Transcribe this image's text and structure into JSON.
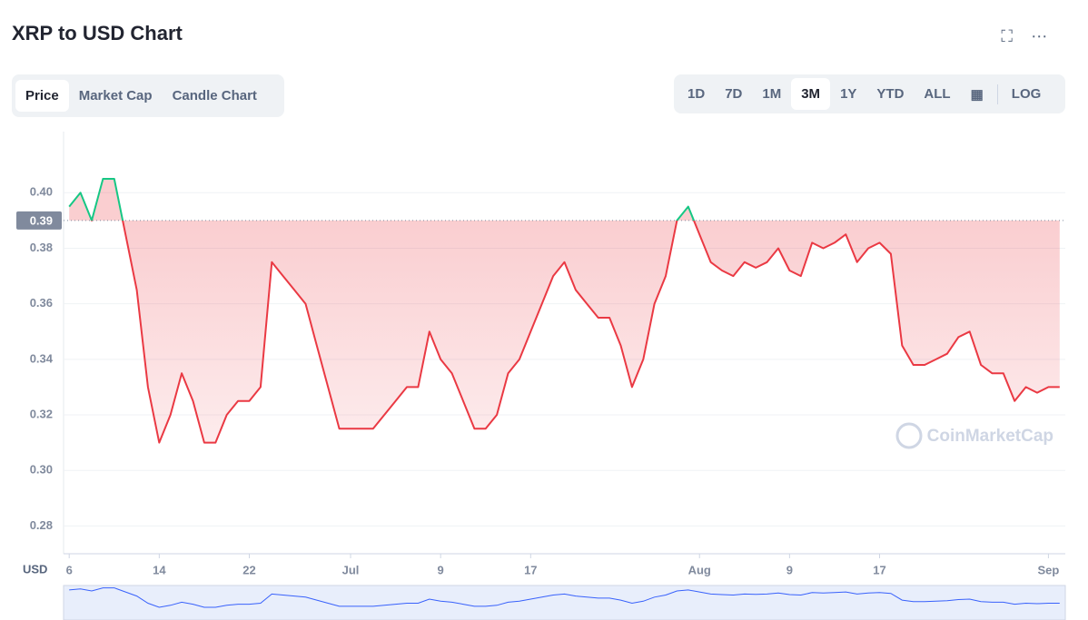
{
  "ui": {
    "tabs": [
      "Price",
      "Market Cap",
      "Candle Chart"
    ],
    "ranges": [
      "1D",
      "7D",
      "1M",
      "3M",
      "1Y",
      "YTD",
      "ALL"
    ],
    "log": "LOG",
    "watermark": "CoinMarketCap"
  },
  "chart_data": {
    "type": "line",
    "title": "XRP to USD Chart",
    "y_label": "USD",
    "x": [
      0,
      1,
      2,
      3,
      4,
      5,
      6,
      7,
      8,
      9,
      10,
      11,
      12,
      13,
      14,
      15,
      16,
      17,
      18,
      19,
      20,
      21,
      22,
      23,
      24,
      25,
      26,
      27,
      28,
      29,
      30,
      31,
      32,
      33,
      34,
      35,
      36,
      37,
      38,
      39,
      40,
      41,
      42,
      43,
      44,
      45,
      46,
      47,
      48,
      49,
      50,
      51,
      52,
      53,
      54,
      55,
      56,
      57,
      58,
      59,
      60,
      61,
      62,
      63,
      64,
      65,
      66,
      67,
      68,
      69,
      70,
      71,
      72,
      73,
      74,
      75,
      76,
      77,
      78,
      79,
      80,
      81,
      82,
      83,
      84,
      85,
      86,
      87,
      88
    ],
    "values": [
      0.395,
      0.4,
      0.39,
      0.405,
      0.405,
      0.385,
      0.365,
      0.33,
      0.31,
      0.32,
      0.335,
      0.325,
      0.31,
      0.31,
      0.32,
      0.325,
      0.325,
      0.33,
      0.375,
      0.37,
      0.365,
      0.36,
      0.345,
      0.33,
      0.315,
      0.315,
      0.315,
      0.315,
      0.32,
      0.325,
      0.33,
      0.33,
      0.35,
      0.34,
      0.335,
      0.325,
      0.315,
      0.315,
      0.32,
      0.335,
      0.34,
      0.35,
      0.36,
      0.37,
      0.375,
      0.365,
      0.36,
      0.355,
      0.355,
      0.345,
      0.33,
      0.34,
      0.36,
      0.37,
      0.39,
      0.395,
      0.385,
      0.375,
      0.372,
      0.37,
      0.375,
      0.373,
      0.375,
      0.38,
      0.372,
      0.37,
      0.382,
      0.38,
      0.382,
      0.385,
      0.375,
      0.38,
      0.382,
      0.378,
      0.345,
      0.338,
      0.338,
      0.34,
      0.342,
      0.348,
      0.35,
      0.338,
      0.335,
      0.335,
      0.325,
      0.33,
      0.328,
      0.33,
      0.33
    ],
    "baseline": 0.39,
    "color_above": "#16c784",
    "color_below": "#ea3943",
    "xlim": [
      -0.5,
      88.5
    ],
    "ylim": [
      0.27,
      0.422
    ],
    "yticks": [
      0.28,
      {
        "value": 0.3,
        "label": "0.30"
      },
      0.32,
      0.34,
      0.36,
      0.38,
      {
        "value": 0.4,
        "label": "0.40"
      }
    ],
    "xticks": [
      {
        "value": 0,
        "label": "6"
      },
      {
        "value": 8,
        "label": "14"
      },
      {
        "value": 16,
        "label": "22"
      },
      {
        "value": 25,
        "label": "Jul"
      },
      {
        "value": 33,
        "label": "9"
      },
      {
        "value": 41,
        "label": "17"
      },
      {
        "value": 56,
        "label": "Aug"
      },
      {
        "value": 64,
        "label": "9"
      },
      {
        "value": 72,
        "label": "17"
      },
      {
        "value": 87,
        "label": "Sep"
      }
    ],
    "grid": true
  }
}
